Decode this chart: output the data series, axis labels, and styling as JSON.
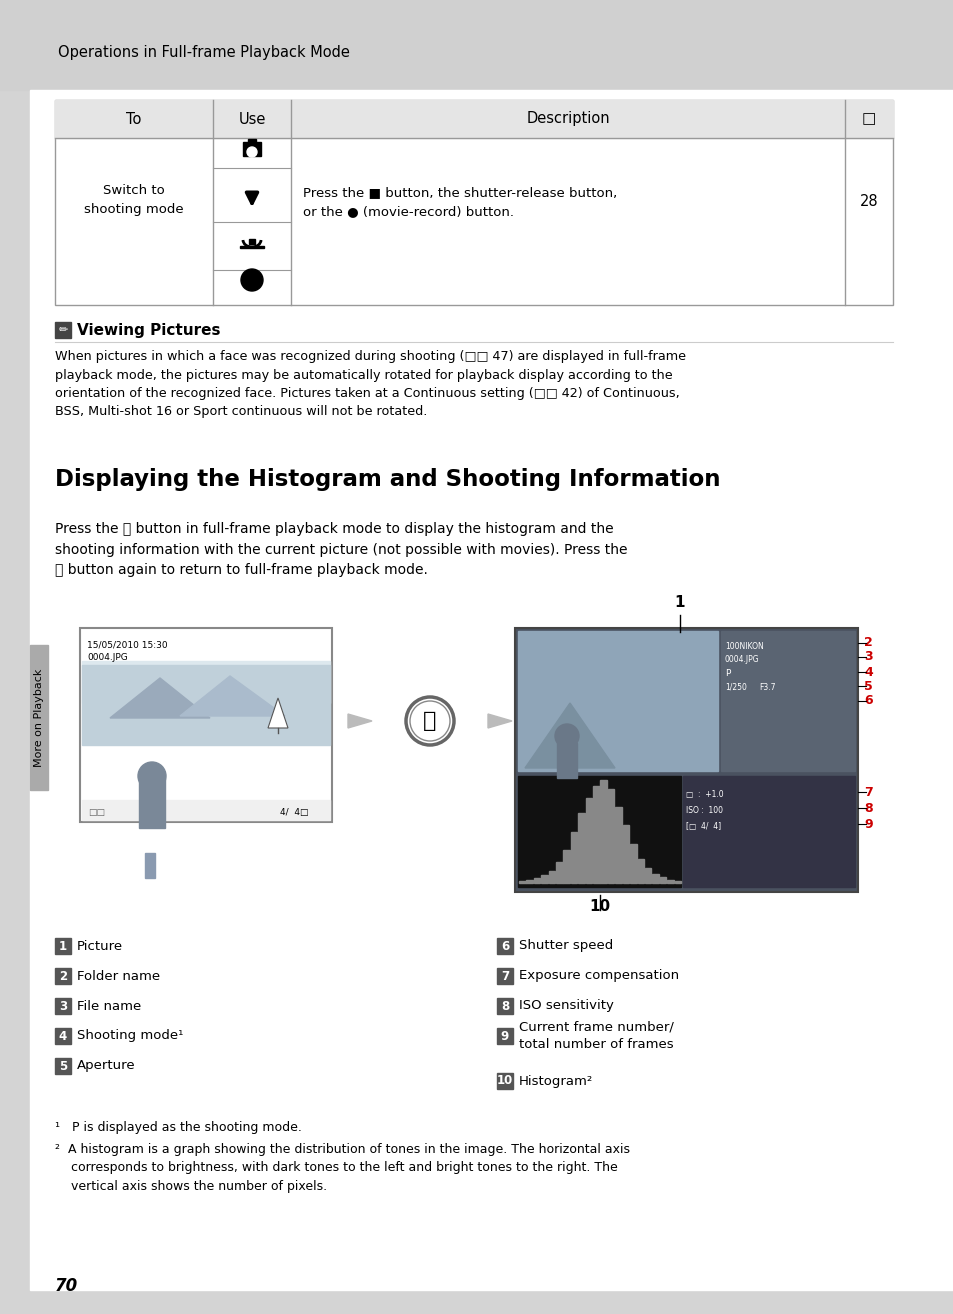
{
  "bg_color": "#d4d4d4",
  "page_bg": "#ffffff",
  "header_text": "Operations in Full-frame Playback Mode",
  "note_title": "Viewing Pictures",
  "note_body_line1": "When pictures in which a face was recognized during shooting (□□ 47) are displayed in full-frame",
  "note_body_line2": "playback mode, the pictures may be automatically rotated for playback display according to the",
  "note_body_line3": "orientation of the recognized face. Pictures taken at a ",
  "note_body_bold1": "Continuous",
  "note_body_line3b": " setting (□□ 42) of ",
  "note_body_bold2": "Continuous",
  "note_body_line4": ", ",
  "note_body_bold3": "BSS",
  "note_body_line4b": ", ",
  "note_body_bold4": "Multi-shot 16",
  "note_body_line4c": " or ",
  "note_body_bold5": "Sport continuous",
  "note_body_line4d": " will not be rotated.",
  "section_title": "Displaying the Histogram and Shooting Information",
  "section_body": "Press the ⓞ button in full-frame playback mode to display the histogram and the\nshooting information with the current picture (not possible with movies). Press the\nⓞ button again to return to full-frame playback mode.",
  "badge_color": "#555555",
  "labels_left": [
    {
      "num": "1",
      "text": "Picture"
    },
    {
      "num": "2",
      "text": "Folder name"
    },
    {
      "num": "3",
      "text": "File name"
    },
    {
      "num": "4",
      "text": "Shooting mode¹"
    },
    {
      "num": "5",
      "text": "Aperture"
    }
  ],
  "labels_right": [
    {
      "num": "6",
      "text": "Shutter speed"
    },
    {
      "num": "7",
      "text": "Exposure compensation"
    },
    {
      "num": "8",
      "text": "ISO sensitivity"
    },
    {
      "num": "9",
      "text": "Current frame number/\ntotal number of frames"
    },
    {
      "num": "10",
      "text": "Histogram²"
    }
  ],
  "page_number": "70",
  "sidebar_text": "More on Playback",
  "table_desc": "Press the ■ button, the shutter-release button,\nor the ● (movie-record) button.",
  "table_page": "28"
}
